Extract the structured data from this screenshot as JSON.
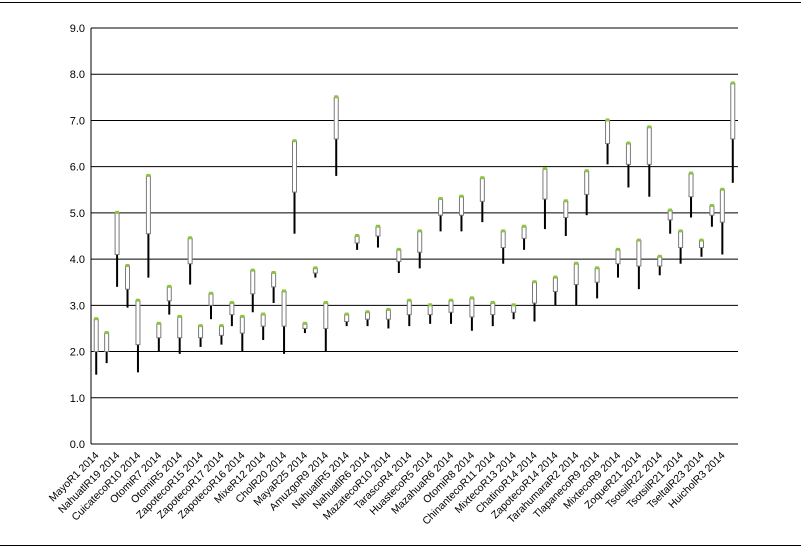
{
  "chart_data": {
    "type": "stock",
    "ylim": [
      0,
      9
    ],
    "yticks": [
      "0.0",
      "1.0",
      "2.0",
      "3.0",
      "4.0",
      "5.0",
      "6.0",
      "7.0",
      "8.0",
      "9.0"
    ],
    "grid": true,
    "categories": [
      "MayoR1 2014",
      "NahuatlR19 2014",
      "CuicatecoR10 2014",
      "OtomiR7 2014",
      "OtomiR5 2014",
      "ZapotecoR15 2014",
      "ZapotecoR17 2014",
      "ZapotecoR16 2014",
      "MixeR12 2014",
      "CholR20 2014",
      "MayaR25 2014",
      "AmuzgoR9 2014",
      "NahuatlR5 2014",
      "NahuatlR6 2014",
      "MazatecoR10 2014",
      "TarascoR4 2014",
      "HuastecoR5 2014",
      "MazahuaR6 2014",
      "OtomiR8 2014",
      "ChinantecoR11 2014",
      "MixtecoR13 2014",
      "ChatinoR14 2014",
      "ZapotecoR14 2014",
      "TarahumaraR2 2014",
      "TlapanecoR9 2014",
      "MixtecoR9 2014",
      "ZoqueR21 2014",
      "TsotsilR22 2014",
      "TsotsilR21 2014",
      "TseltalR23 2014",
      "HuicholR3 2014"
    ],
    "points": [
      {
        "high": 2.7,
        "open": 2.7,
        "close": 2.0,
        "low": 1.5
      },
      {
        "high": 2.4,
        "open": 2.4,
        "close": 2.0,
        "low": 1.75
      },
      {
        "high": 5.0,
        "open": 5.0,
        "close": 4.1,
        "low": 3.4
      },
      {
        "high": 3.85,
        "open": 3.85,
        "close": 3.35,
        "low": 2.95
      },
      {
        "high": 3.1,
        "open": 3.1,
        "close": 2.15,
        "low": 1.55
      },
      {
        "high": 5.8,
        "open": 5.8,
        "close": 4.55,
        "low": 3.6
      },
      {
        "high": 2.6,
        "open": 2.6,
        "close": 2.3,
        "low": 2.0
      },
      {
        "high": 3.4,
        "open": 3.4,
        "close": 3.1,
        "low": 2.8
      },
      {
        "high": 2.75,
        "open": 2.75,
        "close": 2.3,
        "low": 1.95
      },
      {
        "high": 4.45,
        "open": 4.45,
        "close": 3.9,
        "low": 3.45
      },
      {
        "high": 2.55,
        "open": 2.55,
        "close": 2.3,
        "low": 2.1
      },
      {
        "high": 3.25,
        "open": 3.25,
        "close": 3.0,
        "low": 2.7
      },
      {
        "high": 2.55,
        "open": 2.55,
        "close": 2.35,
        "low": 2.15
      },
      {
        "high": 3.05,
        "open": 3.05,
        "close": 2.8,
        "low": 2.55
      },
      {
        "high": 2.75,
        "open": 2.75,
        "close": 2.4,
        "low": 2.0
      },
      {
        "high": 3.75,
        "open": 3.75,
        "close": 3.25,
        "low": 2.85
      },
      {
        "high": 2.8,
        "open": 2.8,
        "close": 2.55,
        "low": 2.25
      },
      {
        "high": 3.7,
        "open": 3.7,
        "close": 3.4,
        "low": 3.05
      },
      {
        "high": 3.3,
        "open": 3.3,
        "close": 2.55,
        "low": 1.95
      },
      {
        "high": 6.55,
        "open": 6.55,
        "close": 5.45,
        "low": 4.55
      },
      {
        "high": 2.6,
        "open": 2.6,
        "close": 2.5,
        "low": 2.4
      },
      {
        "high": 3.8,
        "open": 3.8,
        "close": 3.7,
        "low": 3.6
      },
      {
        "high": 3.05,
        "open": 3.05,
        "close": 2.5,
        "low": 2.0
      },
      {
        "high": 7.5,
        "open": 7.5,
        "close": 6.6,
        "low": 5.8
      },
      {
        "high": 2.8,
        "open": 2.8,
        "close": 2.65,
        "low": 2.55
      },
      {
        "high": 4.5,
        "open": 4.5,
        "close": 4.35,
        "low": 4.2
      },
      {
        "high": 2.85,
        "open": 2.85,
        "close": 2.7,
        "low": 2.55
      },
      {
        "high": 4.7,
        "open": 4.7,
        "close": 4.5,
        "low": 4.25
      },
      {
        "high": 2.9,
        "open": 2.9,
        "close": 2.7,
        "low": 2.5
      },
      {
        "high": 4.2,
        "open": 4.2,
        "close": 3.95,
        "low": 3.7
      },
      {
        "high": 3.1,
        "open": 3.1,
        "close": 2.8,
        "low": 2.55
      },
      {
        "high": 4.6,
        "open": 4.6,
        "close": 4.15,
        "low": 3.8
      },
      {
        "high": 3.0,
        "open": 3.0,
        "close": 2.8,
        "low": 2.6
      },
      {
        "high": 5.3,
        "open": 5.3,
        "close": 4.95,
        "low": 4.6
      },
      {
        "high": 3.1,
        "open": 3.1,
        "close": 2.85,
        "low": 2.6
      },
      {
        "high": 5.35,
        "open": 5.35,
        "close": 4.95,
        "low": 4.6
      },
      {
        "high": 3.15,
        "open": 3.15,
        "close": 2.75,
        "low": 2.45
      },
      {
        "high": 5.75,
        "open": 5.75,
        "close": 5.25,
        "low": 4.8
      },
      {
        "high": 3.05,
        "open": 3.05,
        "close": 2.8,
        "low": 2.55
      },
      {
        "high": 4.6,
        "open": 4.6,
        "close": 4.25,
        "low": 3.9
      },
      {
        "high": 3.0,
        "open": 3.0,
        "close": 2.85,
        "low": 2.7
      },
      {
        "high": 4.7,
        "open": 4.7,
        "close": 4.45,
        "low": 4.2
      },
      {
        "high": 3.5,
        "open": 3.5,
        "close": 3.05,
        "low": 2.65
      },
      {
        "high": 5.95,
        "open": 5.95,
        "close": 5.3,
        "low": 4.65
      },
      {
        "high": 3.6,
        "open": 3.6,
        "close": 3.3,
        "low": 3.0
      },
      {
        "high": 5.25,
        "open": 5.25,
        "close": 4.9,
        "low": 4.5
      },
      {
        "high": 3.9,
        "open": 3.9,
        "close": 3.45,
        "low": 3.0
      },
      {
        "high": 5.9,
        "open": 5.9,
        "close": 5.4,
        "low": 4.95
      },
      {
        "high": 3.8,
        "open": 3.8,
        "close": 3.5,
        "low": 3.15
      },
      {
        "high": 7.0,
        "open": 7.0,
        "close": 6.5,
        "low": 6.05
      },
      {
        "high": 4.2,
        "open": 4.2,
        "close": 3.9,
        "low": 3.6
      },
      {
        "high": 6.5,
        "open": 6.5,
        "close": 6.05,
        "low": 5.55
      },
      {
        "high": 4.4,
        "open": 4.4,
        "close": 3.85,
        "low": 3.35
      },
      {
        "high": 6.85,
        "open": 6.85,
        "close": 6.05,
        "low": 5.35
      },
      {
        "high": 4.05,
        "open": 4.05,
        "close": 3.85,
        "low": 3.65
      },
      {
        "high": 5.05,
        "open": 5.05,
        "close": 4.85,
        "low": 4.55
      },
      {
        "high": 4.6,
        "open": 4.6,
        "close": 4.25,
        "low": 3.9
      },
      {
        "high": 5.85,
        "open": 5.85,
        "close": 5.35,
        "low": 4.9
      },
      {
        "high": 4.4,
        "open": 4.4,
        "close": 4.25,
        "low": 4.05
      },
      {
        "high": 5.15,
        "open": 5.15,
        "close": 4.95,
        "low": 4.7
      },
      {
        "high": 5.5,
        "open": 5.5,
        "close": 4.8,
        "low": 4.1
      },
      {
        "high": 7.8,
        "open": 7.8,
        "close": 6.6,
        "low": 5.65
      }
    ],
    "colors": {
      "body_fill": "#ffffff",
      "body_stroke": "#7a7a7a",
      "whisker": "#000000",
      "cap": "#8cc43c",
      "grid": "#000000"
    }
  }
}
